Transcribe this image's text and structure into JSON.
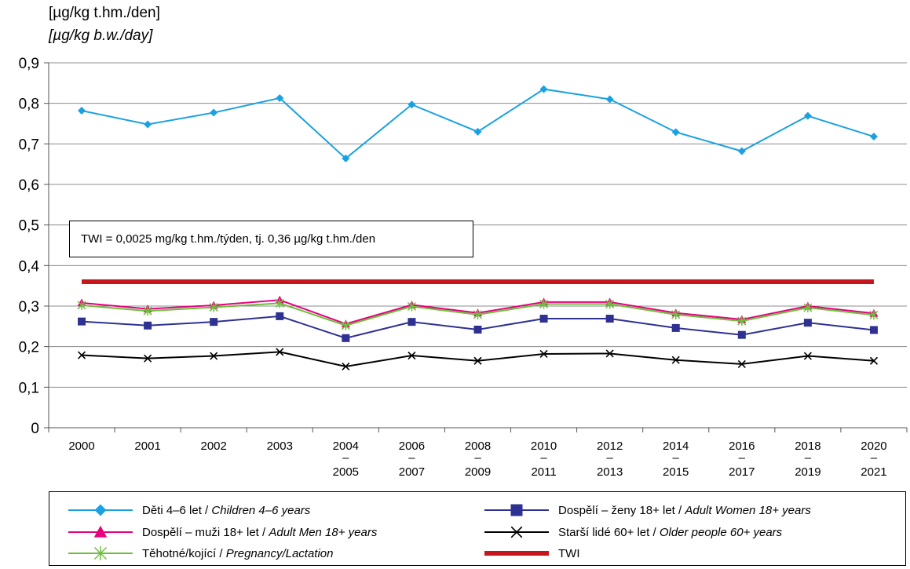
{
  "unit_label_cz": "[µg/kg t.hm./den]",
  "unit_label_en": "[µg/kg b.w./day]",
  "note": "TWI = 0,0025 mg/kg t.hm./týden, tj. 0,36 µg/kg t.hm./den",
  "colors": {
    "children": "#1BA1E2",
    "women": "#2E3192",
    "men": "#E6007E",
    "older": "#000000",
    "pregnancy": "#6CBF3C",
    "twi": "#C8161D"
  },
  "legend": [
    {
      "key": "children",
      "cz": "Děti 4–6 let / ",
      "en": "Children 4–6 years",
      "marker": "diamond-icon"
    },
    {
      "key": "women",
      "cz": "Dospělí – ženy 18+ let / ",
      "en": "Adult Women 18+ years",
      "marker": "square-icon"
    },
    {
      "key": "men",
      "cz": "Dospělí – muži 18+ let / ",
      "en": "Adult Men 18+ years",
      "marker": "triangle-icon"
    },
    {
      "key": "older",
      "cz": "Starší lidé 60+ let / ",
      "en": "Older people 60+ years",
      "marker": "cross-icon"
    },
    {
      "key": "pregnancy",
      "cz": "Těhotné/kojící / ",
      "en": "Pregnancy/Lactation",
      "marker": "asterisk-icon"
    },
    {
      "key": "twi",
      "cz": "TWI",
      "en": "",
      "marker": "thick-line-icon"
    }
  ],
  "chart_data": {
    "type": "line",
    "categories": [
      [
        "2000"
      ],
      [
        "2001"
      ],
      [
        "2002"
      ],
      [
        "2003"
      ],
      [
        "2004",
        "–",
        "2005"
      ],
      [
        "2006",
        "–",
        "2007"
      ],
      [
        "2008",
        "–",
        "2009"
      ],
      [
        "2010",
        "–",
        "2011"
      ],
      [
        "2012",
        "–",
        "2013"
      ],
      [
        "2014",
        "–",
        "2015"
      ],
      [
        "2016",
        "–",
        "2017"
      ],
      [
        "2018",
        "–",
        "2019"
      ],
      [
        "2020",
        "–",
        "2021"
      ]
    ],
    "ylim": [
      0,
      0.9
    ],
    "yticks": [
      "0",
      "0,1",
      "0,2",
      "0,3",
      "0,4",
      "0,5",
      "0,6",
      "0,7",
      "0,8",
      "0,9"
    ],
    "series": [
      {
        "key": "children",
        "name": "Děti 4–6 let / Children 4–6 years",
        "marker": "diamond",
        "values": [
          0.782,
          0.748,
          0.777,
          0.813,
          0.664,
          0.797,
          0.73,
          0.835,
          0.81,
          0.729,
          0.682,
          0.769,
          0.718
        ]
      },
      {
        "key": "men",
        "name": "Dospělí – muži 18+ let / Adult Men 18+ years",
        "marker": "triangle",
        "values": [
          0.308,
          0.293,
          0.302,
          0.315,
          0.256,
          0.303,
          0.283,
          0.31,
          0.31,
          0.283,
          0.267,
          0.3,
          0.282
        ]
      },
      {
        "key": "pregnancy",
        "name": "Těhotné/kojící / Pregnancy/Lactation",
        "marker": "asterisk",
        "values": [
          0.302,
          0.288,
          0.297,
          0.307,
          0.252,
          0.299,
          0.279,
          0.305,
          0.305,
          0.279,
          0.263,
          0.296,
          0.278
        ]
      },
      {
        "key": "women",
        "name": "Dospělí – ženy 18+ let / Adult Women 18+ years",
        "marker": "square",
        "values": [
          0.262,
          0.252,
          0.261,
          0.275,
          0.221,
          0.261,
          0.242,
          0.269,
          0.269,
          0.246,
          0.229,
          0.259,
          0.241
        ]
      },
      {
        "key": "older",
        "name": "Starší lidé 60+ let / Older people 60+ years",
        "marker": "cross",
        "values": [
          0.179,
          0.171,
          0.177,
          0.187,
          0.151,
          0.178,
          0.165,
          0.182,
          0.183,
          0.167,
          0.157,
          0.177,
          0.165
        ]
      },
      {
        "key": "twi",
        "name": "TWI",
        "marker": "none",
        "values": [
          0.36,
          0.36,
          0.36,
          0.36,
          0.36,
          0.36,
          0.36,
          0.36,
          0.36,
          0.36,
          0.36,
          0.36,
          0.36
        ]
      }
    ],
    "grid": "horizontal",
    "legend_position": "bottom"
  }
}
